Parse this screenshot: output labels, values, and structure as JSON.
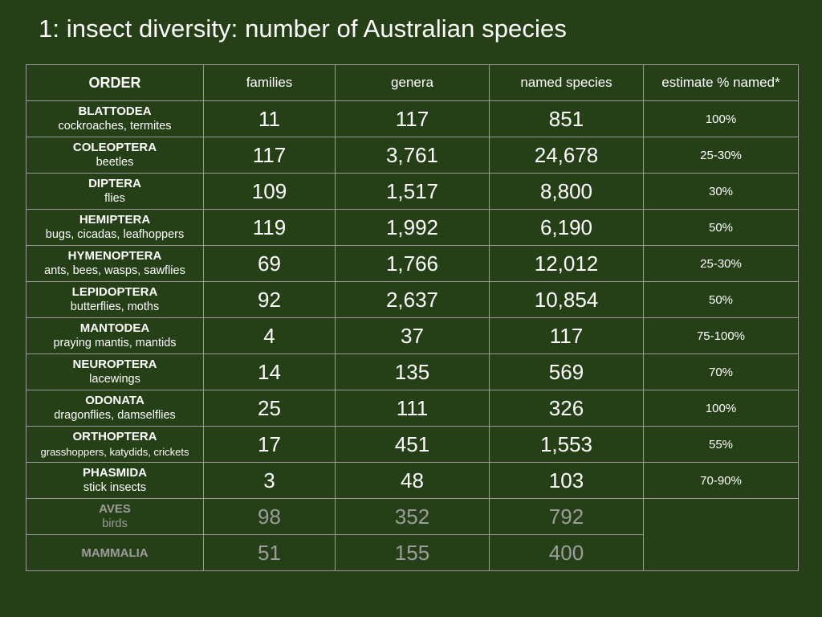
{
  "title": "1: insect diversity: number of Australian species",
  "headers": {
    "order": "ORDER",
    "families": "families",
    "genera": "genera",
    "named_species": "named species",
    "estimate": "estimate % named*"
  },
  "rows": [
    {
      "order": "BLATTODEA",
      "common": "cockroaches, termites",
      "families": "11",
      "genera": "117",
      "species": "851",
      "estimate": "100%"
    },
    {
      "order": "COLEOPTERA",
      "common": "beetles",
      "families": "117",
      "genera": "3,761",
      "species": "24,678",
      "estimate": "25-30%"
    },
    {
      "order": "DIPTERA",
      "common": "flies",
      "families": "109",
      "genera": "1,517",
      "species": "8,800",
      "estimate": "30%"
    },
    {
      "order": "HEMIPTERA",
      "common": "bugs, cicadas, leafhoppers",
      "families": "119",
      "genera": "1,992",
      "species": "6,190",
      "estimate": "50%"
    },
    {
      "order": "HYMENOPTERA",
      "common": "ants, bees, wasps, sawflies",
      "families": "69",
      "genera": "1,766",
      "species": "12,012",
      "estimate": "25-30%"
    },
    {
      "order": "LEPIDOPTERA",
      "common": "butterflies, moths",
      "families": "92",
      "genera": "2,637",
      "species": "10,854",
      "estimate": "50%"
    },
    {
      "order": "MANTODEA",
      "common": "praying mantis, mantids",
      "families": "4",
      "genera": "37",
      "species": "117",
      "estimate": "75-100%"
    },
    {
      "order": "NEUROPTERA",
      "common": "lacewings",
      "families": "14",
      "genera": "135",
      "species": "569",
      "estimate": "70%"
    },
    {
      "order": "ODONATA",
      "common": "dragonflies, damselflies",
      "families": "25",
      "genera": "111",
      "species": "326",
      "estimate": "100%"
    },
    {
      "order": "ORTHOPTERA",
      "common": "grasshoppers, katydids, crickets",
      "families": "17",
      "genera": "451",
      "species": "1,553",
      "estimate": "55%"
    },
    {
      "order": "PHASMIDA",
      "common": "stick insects",
      "families": "3",
      "genera": "48",
      "species": "103",
      "estimate": "70-90%"
    }
  ],
  "reference_rows": [
    {
      "order": "AVES",
      "common": "birds",
      "families": "98",
      "genera": "352",
      "species": "792"
    },
    {
      "order": "MAMMALIA",
      "common": "",
      "families": "51",
      "genera": "155",
      "species": "400"
    }
  ],
  "colors": {
    "background": "#254016",
    "grid": "#9a9a9a",
    "text": "#ffffff",
    "reference_text": "#9c9c9c"
  }
}
